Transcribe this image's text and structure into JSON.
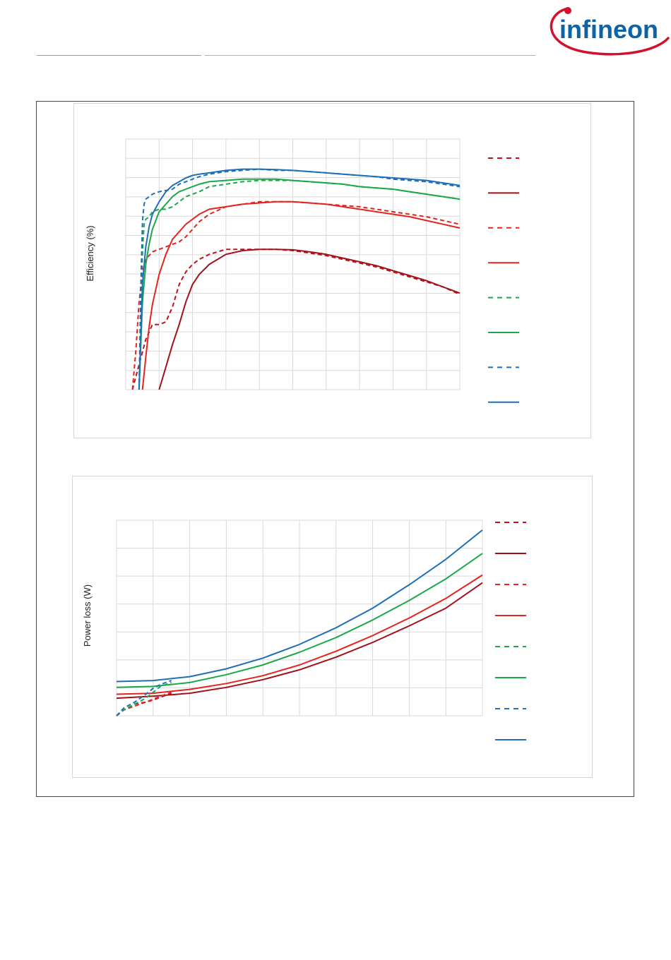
{
  "header": {
    "logo_text": "infineon"
  },
  "chart_data": [
    {
      "type": "line",
      "title": "",
      "xlabel": "",
      "ylabel": "Efficiency (%)",
      "grid": true,
      "legend_position": "right",
      "x_gridlines": 10,
      "y_gridlines": 13,
      "xlim": [
        0,
        1
      ],
      "ylim": [
        0,
        1
      ],
      "series": [
        {
          "style": "dashed",
          "color": "#c0121a",
          "x": [
            0.02,
            0.03,
            0.04,
            0.06,
            0.08,
            0.1,
            0.12,
            0.14,
            0.16,
            0.18,
            0.2,
            0.22,
            0.25,
            0.3,
            0.35,
            0.4,
            0.45,
            0.5,
            0.55,
            0.6,
            0.65,
            0.7,
            0.75,
            0.8,
            0.85,
            0.9,
            0.95,
            1.0
          ],
          "y": [
            0.0,
            0.05,
            0.1,
            0.2,
            0.26,
            0.26,
            0.27,
            0.33,
            0.42,
            0.47,
            0.5,
            0.52,
            0.54,
            0.56,
            0.56,
            0.56,
            0.56,
            0.555,
            0.545,
            0.535,
            0.52,
            0.505,
            0.49,
            0.47,
            0.45,
            0.43,
            0.41,
            0.38
          ]
        },
        {
          "style": "solid",
          "color": "#a3101a",
          "x": [
            0.1,
            0.12,
            0.14,
            0.16,
            0.18,
            0.2,
            0.22,
            0.25,
            0.3,
            0.35,
            0.4,
            0.45,
            0.5,
            0.55,
            0.6,
            0.65,
            0.7,
            0.75,
            0.8,
            0.85,
            0.9,
            0.95,
            1.0
          ],
          "y": [
            0.0,
            0.09,
            0.18,
            0.26,
            0.35,
            0.42,
            0.46,
            0.5,
            0.54,
            0.555,
            0.56,
            0.56,
            0.558,
            0.55,
            0.54,
            0.525,
            0.51,
            0.495,
            0.475,
            0.455,
            0.435,
            0.41,
            0.385
          ]
        },
        {
          "style": "dashed",
          "color": "#e6231f",
          "x": [
            0.02,
            0.03,
            0.04,
            0.05,
            0.06,
            0.08,
            0.1,
            0.12,
            0.14,
            0.16,
            0.18,
            0.2,
            0.22,
            0.25,
            0.3,
            0.35,
            0.4,
            0.45,
            0.5,
            0.55,
            0.6,
            0.65,
            0.7,
            0.75,
            0.8,
            0.85,
            0.9,
            0.95,
            1.0
          ],
          "y": [
            0.0,
            0.15,
            0.35,
            0.47,
            0.52,
            0.55,
            0.56,
            0.57,
            0.58,
            0.59,
            0.61,
            0.64,
            0.67,
            0.7,
            0.73,
            0.74,
            0.75,
            0.75,
            0.75,
            0.745,
            0.74,
            0.735,
            0.73,
            0.72,
            0.71,
            0.7,
            0.69,
            0.675,
            0.66
          ]
        },
        {
          "style": "solid",
          "color": "#e6231f",
          "x": [
            0.05,
            0.06,
            0.07,
            0.08,
            0.1,
            0.12,
            0.14,
            0.16,
            0.18,
            0.2,
            0.22,
            0.25,
            0.3,
            0.35,
            0.4,
            0.45,
            0.5,
            0.55,
            0.6,
            0.65,
            0.7,
            0.75,
            0.8,
            0.85,
            0.9,
            0.95,
            1.0
          ],
          "y": [
            0.0,
            0.13,
            0.25,
            0.34,
            0.46,
            0.54,
            0.6,
            0.63,
            0.66,
            0.68,
            0.7,
            0.72,
            0.73,
            0.74,
            0.745,
            0.75,
            0.75,
            0.745,
            0.74,
            0.73,
            0.72,
            0.71,
            0.7,
            0.69,
            0.675,
            0.66,
            0.645
          ]
        },
        {
          "style": "dashed",
          "color": "#1aa84a",
          "x": [
            0.04,
            0.045,
            0.05,
            0.055,
            0.06,
            0.07,
            0.08,
            0.1,
            0.12,
            0.14,
            0.16,
            0.18,
            0.2,
            0.22,
            0.25,
            0.3,
            0.35,
            0.4,
            0.45,
            0.5,
            0.55,
            0.6,
            0.65,
            0.7,
            0.75,
            0.8,
            0.85,
            0.9,
            0.95,
            1.0
          ],
          "y": [
            0.0,
            0.3,
            0.55,
            0.66,
            0.68,
            0.69,
            0.71,
            0.72,
            0.72,
            0.73,
            0.75,
            0.77,
            0.78,
            0.79,
            0.81,
            0.82,
            0.83,
            0.835,
            0.835,
            0.835,
            0.83,
            0.825,
            0.82,
            0.81,
            0.805,
            0.8,
            0.79,
            0.78,
            0.77,
            0.76
          ]
        },
        {
          "style": "solid",
          "color": "#1aa84a",
          "x": [
            0.04,
            0.05,
            0.06,
            0.07,
            0.08,
            0.1,
            0.12,
            0.14,
            0.16,
            0.18,
            0.2,
            0.22,
            0.25,
            0.3,
            0.35,
            0.4,
            0.45,
            0.5,
            0.55,
            0.6,
            0.65,
            0.7,
            0.75,
            0.8,
            0.85,
            0.9,
            0.95,
            1.0
          ],
          "y": [
            0.0,
            0.35,
            0.5,
            0.58,
            0.64,
            0.71,
            0.74,
            0.77,
            0.79,
            0.8,
            0.81,
            0.82,
            0.83,
            0.835,
            0.84,
            0.84,
            0.84,
            0.835,
            0.83,
            0.825,
            0.82,
            0.81,
            0.805,
            0.8,
            0.79,
            0.78,
            0.77,
            0.76
          ]
        },
        {
          "style": "dashed",
          "color": "#1f6fb8",
          "x": [
            0.04,
            0.045,
            0.05,
            0.055,
            0.06,
            0.07,
            0.08,
            0.1,
            0.12,
            0.14,
            0.16,
            0.18,
            0.2,
            0.22,
            0.25,
            0.3,
            0.35,
            0.4,
            0.45,
            0.5,
            0.55,
            0.6,
            0.65,
            0.7,
            0.75,
            0.8,
            0.85,
            0.9,
            0.95,
            1.0
          ],
          "y": [
            0.0,
            0.4,
            0.67,
            0.74,
            0.76,
            0.77,
            0.78,
            0.79,
            0.795,
            0.8,
            0.82,
            0.83,
            0.84,
            0.85,
            0.86,
            0.87,
            0.875,
            0.88,
            0.875,
            0.875,
            0.87,
            0.865,
            0.86,
            0.855,
            0.85,
            0.84,
            0.835,
            0.83,
            0.82,
            0.81
          ]
        },
        {
          "style": "solid",
          "color": "#1f6fb8",
          "x": [
            0.04,
            0.05,
            0.06,
            0.07,
            0.08,
            0.1,
            0.12,
            0.14,
            0.16,
            0.18,
            0.2,
            0.22,
            0.25,
            0.3,
            0.35,
            0.4,
            0.45,
            0.5,
            0.55,
            0.6,
            0.65,
            0.7,
            0.75,
            0.8,
            0.85,
            0.9,
            0.95,
            1.0
          ],
          "y": [
            0.0,
            0.42,
            0.57,
            0.65,
            0.7,
            0.75,
            0.79,
            0.815,
            0.83,
            0.845,
            0.855,
            0.86,
            0.865,
            0.875,
            0.88,
            0.88,
            0.878,
            0.875,
            0.87,
            0.865,
            0.86,
            0.855,
            0.85,
            0.845,
            0.84,
            0.835,
            0.825,
            0.815
          ]
        }
      ]
    },
    {
      "type": "line",
      "title": "",
      "xlabel": "",
      "ylabel": "Power loss (W)",
      "grid": true,
      "legend_position": "right",
      "x_gridlines": 10,
      "y_gridlines": 7,
      "xlim": [
        0,
        1
      ],
      "ylim": [
        0,
        1
      ],
      "series": [
        {
          "style": "dashed",
          "color": "#c0121a",
          "x": [
            0.0,
            0.02,
            0.05,
            0.08,
            0.1,
            0.12,
            0.15
          ],
          "y": [
            0.0,
            0.03,
            0.06,
            0.07,
            0.08,
            0.095,
            0.115
          ]
        },
        {
          "style": "solid",
          "color": "#a3101a",
          "x": [
            0.0,
            0.1,
            0.2,
            0.3,
            0.4,
            0.5,
            0.6,
            0.7,
            0.8,
            0.9,
            1.0
          ],
          "y": [
            0.09,
            0.1,
            0.115,
            0.145,
            0.185,
            0.235,
            0.3,
            0.375,
            0.46,
            0.55,
            0.68
          ]
        },
        {
          "style": "dashed",
          "color": "#e6231f",
          "x": [
            0.0,
            0.02,
            0.05,
            0.08,
            0.1,
            0.12,
            0.15
          ],
          "y": [
            0.0,
            0.03,
            0.05,
            0.07,
            0.085,
            0.1,
            0.12
          ]
        },
        {
          "style": "solid",
          "color": "#e6231f",
          "x": [
            0.0,
            0.1,
            0.2,
            0.3,
            0.4,
            0.5,
            0.6,
            0.7,
            0.8,
            0.9,
            1.0
          ],
          "y": [
            0.11,
            0.115,
            0.135,
            0.165,
            0.205,
            0.26,
            0.33,
            0.41,
            0.5,
            0.6,
            0.72
          ]
        },
        {
          "style": "dashed",
          "color": "#1aa84a",
          "x": [
            0.0,
            0.02,
            0.05,
            0.08,
            0.1,
            0.12,
            0.15
          ],
          "y": [
            0.0,
            0.03,
            0.06,
            0.09,
            0.12,
            0.15,
            0.17
          ]
        },
        {
          "style": "solid",
          "color": "#1aa84a",
          "x": [
            0.0,
            0.1,
            0.2,
            0.3,
            0.4,
            0.5,
            0.6,
            0.7,
            0.8,
            0.9,
            1.0
          ],
          "y": [
            0.145,
            0.15,
            0.17,
            0.21,
            0.26,
            0.325,
            0.4,
            0.49,
            0.59,
            0.7,
            0.83
          ]
        },
        {
          "style": "dashed",
          "color": "#1f6fb8",
          "x": [
            0.0,
            0.02,
            0.05,
            0.08,
            0.1,
            0.12,
            0.15
          ],
          "y": [
            0.0,
            0.04,
            0.07,
            0.11,
            0.14,
            0.16,
            0.18
          ]
        },
        {
          "style": "solid",
          "color": "#1f6fb8",
          "x": [
            0.0,
            0.1,
            0.2,
            0.3,
            0.4,
            0.5,
            0.6,
            0.7,
            0.8,
            0.9,
            1.0
          ],
          "y": [
            0.175,
            0.18,
            0.2,
            0.24,
            0.295,
            0.365,
            0.45,
            0.55,
            0.67,
            0.8,
            0.95
          ]
        }
      ]
    }
  ]
}
